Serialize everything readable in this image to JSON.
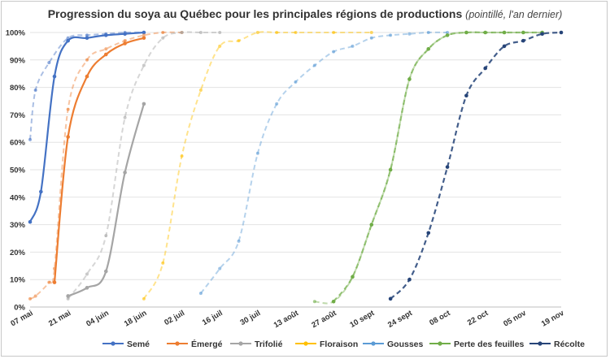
{
  "chart_data": {
    "type": "line",
    "title": "Progression du soya au Québec pour les principales régions de productions",
    "subtitle": "(pointillé, l'an dernier)",
    "y_ticks": [
      "0%",
      "10%",
      "20%",
      "30%",
      "40%",
      "50%",
      "60%",
      "70%",
      "80%",
      "90%",
      "100%"
    ],
    "ylim": [
      0,
      100
    ],
    "x_ticks": [
      {
        "label": "07 mai",
        "day": 0
      },
      {
        "label": "21 mai",
        "day": 14
      },
      {
        "label": "04 juin",
        "day": 28
      },
      {
        "label": "18 juin",
        "day": 42
      },
      {
        "label": "02 juil",
        "day": 56
      },
      {
        "label": "16 juil",
        "day": 70
      },
      {
        "label": "30 juil",
        "day": 84
      },
      {
        "label": "13 août",
        "day": 98
      },
      {
        "label": "27 août",
        "day": 112
      },
      {
        "label": "10 sept",
        "day": 126
      },
      {
        "label": "24 sept",
        "day": 140
      },
      {
        "label": "08 oct",
        "day": 154
      },
      {
        "label": "22 oct",
        "day": 168
      },
      {
        "label": "05 nov",
        "day": 182
      },
      {
        "label": "19 nov",
        "day": 196
      }
    ],
    "xlim": [
      0,
      196
    ],
    "grid": "horizontal",
    "legend_position": "bottom",
    "series": [
      {
        "name": "Semé",
        "color": "#4472C4",
        "current": [
          [
            0,
            31
          ],
          [
            4,
            42
          ],
          [
            9,
            84
          ],
          [
            14,
            97
          ],
          [
            21,
            98
          ],
          [
            28,
            99
          ],
          [
            35,
            99.5
          ],
          [
            42,
            100
          ]
        ],
        "previous": [
          [
            0,
            61
          ],
          [
            2,
            79
          ],
          [
            7,
            89
          ],
          [
            14,
            98
          ],
          [
            21,
            99
          ],
          [
            28,
            99.5
          ],
          [
            35,
            100
          ],
          [
            42,
            100
          ]
        ]
      },
      {
        "name": "Émergé",
        "color": "#ED7D31",
        "current": [
          [
            9,
            9
          ],
          [
            14,
            62
          ],
          [
            21,
            84
          ],
          [
            28,
            92
          ],
          [
            35,
            96
          ],
          [
            42,
            98
          ]
        ],
        "previous": [
          [
            0,
            3
          ],
          [
            2,
            4
          ],
          [
            7,
            9
          ],
          [
            9,
            14
          ],
          [
            14,
            72
          ],
          [
            21,
            90
          ],
          [
            28,
            94
          ],
          [
            35,
            97
          ],
          [
            42,
            99
          ],
          [
            49,
            100
          ],
          [
            56,
            100
          ]
        ]
      },
      {
        "name": "Trifolié",
        "color": "#A5A5A5",
        "current": [
          [
            14,
            4
          ],
          [
            21,
            7
          ],
          [
            28,
            13
          ],
          [
            35,
            49
          ],
          [
            42,
            74
          ]
        ],
        "previous": [
          [
            14,
            3
          ],
          [
            21,
            12
          ],
          [
            28,
            26
          ],
          [
            35,
            69
          ],
          [
            42,
            88
          ],
          [
            49,
            98
          ],
          [
            56,
            100
          ],
          [
            63,
            100
          ],
          [
            70,
            100
          ]
        ]
      },
      {
        "name": "Floraison",
        "color": "#FFC000",
        "current": [],
        "previous": [
          [
            42,
            3
          ],
          [
            49,
            16
          ],
          [
            56,
            55
          ],
          [
            63,
            79
          ],
          [
            70,
            95
          ],
          [
            77,
            97
          ],
          [
            84,
            100
          ],
          [
            91,
            100
          ],
          [
            98,
            100
          ],
          [
            112,
            100
          ],
          [
            126,
            100
          ]
        ]
      },
      {
        "name": "Gousses",
        "color": "#5B9BD5",
        "current": [],
        "previous": [
          [
            63,
            5
          ],
          [
            70,
            14
          ],
          [
            77,
            24
          ],
          [
            84,
            56
          ],
          [
            91,
            74
          ],
          [
            98,
            82
          ],
          [
            105,
            88
          ],
          [
            112,
            93
          ],
          [
            119,
            95
          ],
          [
            126,
            98
          ],
          [
            133,
            99
          ],
          [
            140,
            99.5
          ],
          [
            147,
            100
          ],
          [
            154,
            100
          ]
        ]
      },
      {
        "name": "Perte des feuilles",
        "color": "#70AD47",
        "current": [
          [
            112,
            2
          ],
          [
            119,
            11
          ],
          [
            126,
            30
          ],
          [
            133,
            50
          ],
          [
            140,
            83
          ],
          [
            147,
            94
          ],
          [
            154,
            99
          ],
          [
            161,
            100
          ],
          [
            168,
            100
          ],
          [
            175,
            100
          ],
          [
            182,
            100
          ],
          [
            189,
            100
          ]
        ],
        "current_dash": true,
        "previous": [
          [
            105,
            2
          ],
          [
            112,
            2
          ],
          [
            119,
            11
          ],
          [
            126,
            30
          ],
          [
            133,
            50
          ],
          [
            140,
            83
          ],
          [
            147,
            94
          ],
          [
            154,
            99
          ],
          [
            161,
            100
          ],
          [
            168,
            100
          ],
          [
            175,
            100
          ],
          [
            182,
            100
          ],
          [
            189,
            100
          ]
        ]
      },
      {
        "name": "Récolte",
        "color": "#264478",
        "current": [
          [
            133,
            3
          ],
          [
            140,
            10
          ],
          [
            147,
            27
          ],
          [
            154,
            51
          ],
          [
            161,
            77
          ],
          [
            168,
            87
          ],
          [
            175,
            95
          ],
          [
            182,
            97
          ],
          [
            189,
            99.5
          ],
          [
            196,
            100
          ]
        ],
        "current_dash": true,
        "previous": [
          [
            133,
            3
          ],
          [
            140,
            10
          ],
          [
            147,
            27
          ],
          [
            154,
            51
          ],
          [
            161,
            77
          ],
          [
            168,
            87
          ],
          [
            175,
            95
          ],
          [
            182,
            97
          ],
          [
            189,
            99.5
          ],
          [
            196,
            100
          ]
        ]
      }
    ]
  }
}
